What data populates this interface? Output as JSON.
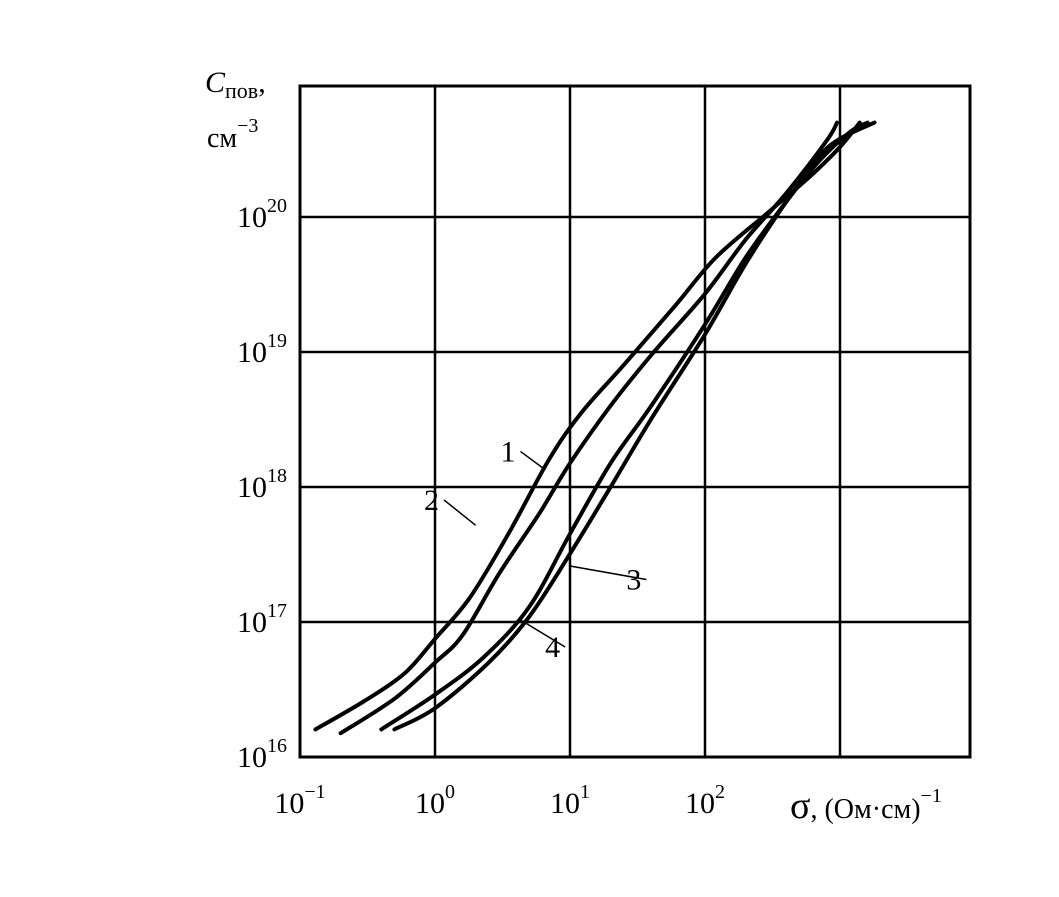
{
  "chart_data": {
    "type": "line",
    "title": "",
    "xlabel": {
      "symbol": "σ",
      "rest": ", (Ом·см)",
      "exp": "−1"
    },
    "ylabel": {
      "symbol": "C",
      "sub": "пов",
      "comma": ",",
      "unit": "см",
      "unit_exp": "−3"
    },
    "x_scale": "log",
    "y_scale": "log",
    "xlim": [
      0.1,
      1000
    ],
    "ylim": [
      1e+16,
      1e+21
    ],
    "grid": true,
    "x_ticks": [
      {
        "value": 0.1,
        "base": "10",
        "exp": "−1"
      },
      {
        "value": 1,
        "base": "10",
        "exp": "0"
      },
      {
        "value": 10,
        "base": "10",
        "exp": "1"
      },
      {
        "value": 100,
        "base": "10",
        "exp": "2"
      }
    ],
    "y_ticks": [
      {
        "value": 1e+16,
        "base": "10",
        "exp": "16"
      },
      {
        "value": 1e+17,
        "base": "10",
        "exp": "17"
      },
      {
        "value": 1e+18,
        "base": "10",
        "exp": "18"
      },
      {
        "value": 1e+19,
        "base": "10",
        "exp": "19"
      },
      {
        "value": 1e+20,
        "base": "10",
        "exp": "20"
      }
    ],
    "series": [
      {
        "name": "1",
        "points": [
          [
            0.13,
            1.6e+16
          ],
          [
            0.3,
            2.6e+16
          ],
          [
            0.6,
            4.2e+16
          ],
          [
            1.0,
            7.5e+16
          ],
          [
            1.8,
            1.5e+17
          ],
          [
            3.5,
            4.5e+17
          ],
          [
            7,
            1.6e+18
          ],
          [
            12,
            3.5e+18
          ],
          [
            25,
            8e+18
          ],
          [
            60,
            2.2e+19
          ],
          [
            120,
            5e+19
          ],
          [
            300,
            1.1e+20
          ],
          [
            600,
            2e+20
          ],
          [
            1000,
            3.3e+20
          ],
          [
            1400,
            5e+20
          ]
        ]
      },
      {
        "name": "2",
        "points": [
          [
            0.2,
            1.5e+16
          ],
          [
            0.5,
            2.7e+16
          ],
          [
            1.0,
            5e+16
          ],
          [
            1.6,
            8e+16
          ],
          [
            3,
            2.3e+17
          ],
          [
            6,
            6.5e+17
          ],
          [
            10,
            1.5e+18
          ],
          [
            20,
            4e+18
          ],
          [
            40,
            9.5e+18
          ],
          [
            100,
            2.7e+19
          ],
          [
            200,
            6.8e+19
          ],
          [
            400,
            1.5e+20
          ],
          [
            800,
            3.7e+20
          ],
          [
            950,
            5e+20
          ]
        ]
      },
      {
        "name": "3",
        "points": [
          [
            0.4,
            1.6e+16
          ],
          [
            1.0,
            2.9e+16
          ],
          [
            2.3,
            5.5e+16
          ],
          [
            5,
            1.3e+17
          ],
          [
            10,
            4.5e+17
          ],
          [
            20,
            1.5e+18
          ],
          [
            40,
            4e+18
          ],
          [
            100,
            1.6e+19
          ],
          [
            200,
            5e+19
          ],
          [
            400,
            1.3e+20
          ],
          [
            700,
            2.6e+20
          ],
          [
            1200,
            4.3e+20
          ],
          [
            1600,
            5e+20
          ]
        ]
      },
      {
        "name": "4",
        "points": [
          [
            0.5,
            1.6e+16
          ],
          [
            1.0,
            2.3e+16
          ],
          [
            2.5,
            5e+16
          ],
          [
            5,
            1.1e+17
          ],
          [
            10,
            3.2e+17
          ],
          [
            20,
            1e+18
          ],
          [
            40,
            3.2e+18
          ],
          [
            100,
            1.35e+19
          ],
          [
            200,
            4.5e+19
          ],
          [
            400,
            1.3e+20
          ],
          [
            700,
            2.8e+20
          ],
          [
            1000,
            3.8e+20
          ],
          [
            1800,
            5e+20
          ]
        ]
      }
    ],
    "labels": [
      {
        "text": "1",
        "at": [
          3.5,
          1.6e+18
        ],
        "leader_to": [
          6.5,
          1.35e+18
        ]
      },
      {
        "text": "2",
        "at": [
          0.95,
          7e+17
        ],
        "leader_to": [
          2.0,
          5.2e+17
        ]
      },
      {
        "text": "3",
        "at": [
          30,
          1.8e+17
        ],
        "leader_to": [
          10,
          2.6e+17
        ]
      },
      {
        "text": "4",
        "at": [
          7.5,
          5.7e+16
        ],
        "leader_to": [
          4.2,
          1.05e+17
        ]
      }
    ]
  }
}
